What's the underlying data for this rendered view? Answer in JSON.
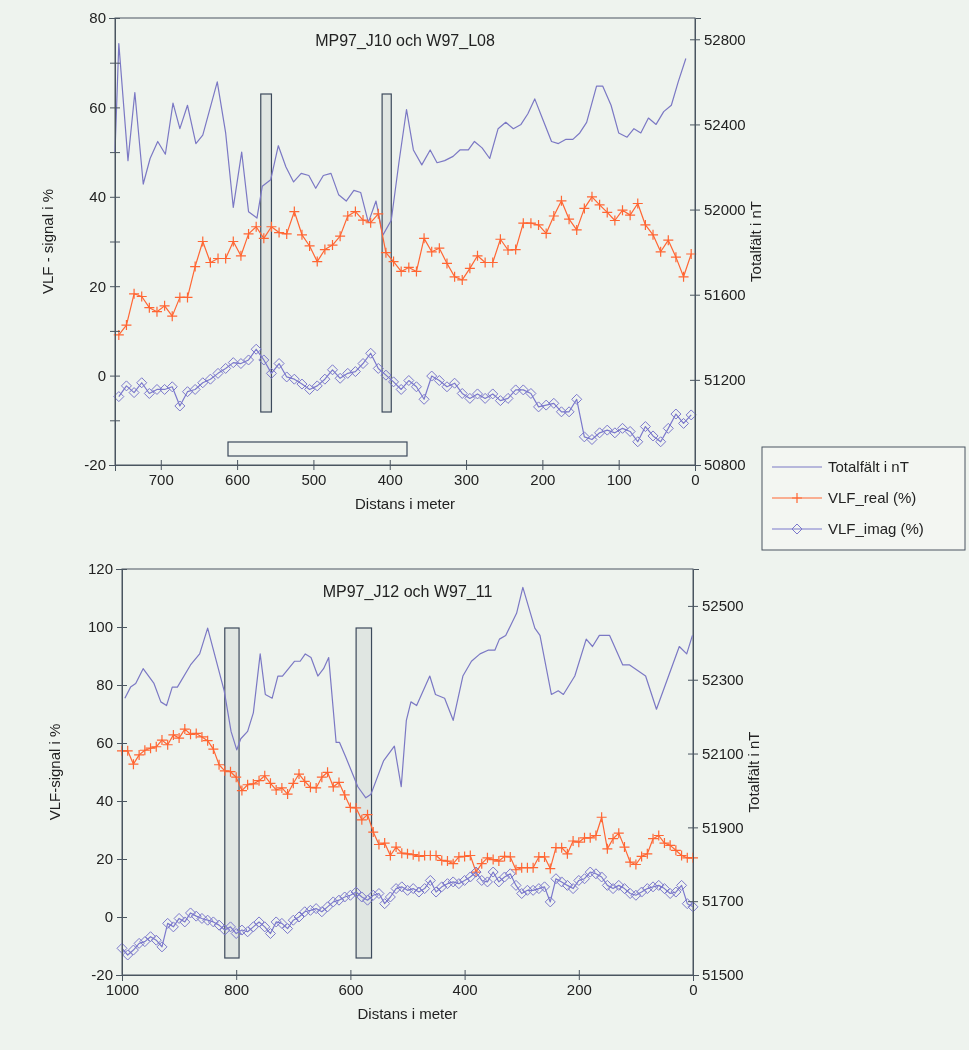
{
  "chart_data": [
    {
      "type": "line",
      "title": "MP97_J10 och W97_L08",
      "xlabel": "Distans i meter",
      "ylabel": "VLF - signal i %",
      "y2label": "Totalfält i nT",
      "legend": "right",
      "x": [
        755,
        745,
        735,
        725,
        715,
        705,
        695,
        685,
        675,
        665,
        655,
        645,
        635,
        625,
        615,
        605,
        595,
        585,
        575,
        565,
        555,
        545,
        535,
        525,
        515,
        505,
        495,
        485,
        475,
        465,
        455,
        445,
        435,
        425,
        415,
        405,
        395,
        385,
        375,
        365,
        355,
        345,
        335,
        325,
        315,
        305,
        295,
        285,
        275,
        265,
        255,
        245,
        235,
        225,
        215,
        205,
        195,
        185,
        175,
        165,
        155,
        145,
        135,
        125,
        115,
        105,
        95,
        85,
        75,
        65,
        55,
        45,
        35,
        25,
        15,
        5
      ],
      "xlim": [
        760,
        0
      ],
      "xticks": [
        700,
        600,
        500,
        400,
        300,
        200,
        100,
        0
      ],
      "ylim": [
        -20,
        80
      ],
      "yticks": [
        -20,
        {
          "value": -10,
          "label": null
        },
        0,
        {
          "value": 10,
          "label": null
        },
        20,
        {
          "value": 30,
          "label": null
        },
        40,
        {
          "value": 50,
          "label": null
        },
        60,
        {
          "value": 70,
          "label": null
        },
        80
      ],
      "y2lim": [
        50800,
        52900
      ],
      "y2ticks": [
        50800,
        51200,
        51600,
        52000,
        52400,
        52800
      ],
      "series": [
        {
          "name": "Totalfält i nT",
          "color": "#7b78c4",
          "axis": "y2",
          "marker": "none",
          "x": [
            760,
            755,
            743,
            734,
            723,
            714,
            704,
            694,
            684,
            675,
            665,
            654,
            645,
            626,
            615,
            605,
            594,
            585,
            574,
            567,
            556,
            546,
            536,
            526,
            516,
            506,
            497,
            487,
            477,
            467,
            457,
            447,
            438,
            428,
            418,
            409,
            398,
            388,
            378,
            369,
            358,
            347,
            338,
            328,
            317,
            308,
            297,
            289,
            279,
            269,
            258,
            248,
            238,
            228,
            219,
            210,
            199,
            188,
            179,
            169,
            160,
            151,
            142,
            129,
            121,
            110,
            100,
            89,
            80,
            71,
            61,
            51,
            41,
            31,
            22,
            12
          ],
          "values": [
            52270,
            52780,
            52230,
            52550,
            52120,
            52240,
            52320,
            52260,
            52500,
            52380,
            52490,
            52310,
            52350,
            52600,
            52360,
            52010,
            52270,
            51990,
            51960,
            52110,
            52140,
            52300,
            52200,
            52130,
            52170,
            52160,
            52100,
            52160,
            52170,
            52070,
            52040,
            52090,
            52080,
            51940,
            52040,
            51880,
            51950,
            52220,
            52470,
            52280,
            52210,
            52280,
            52220,
            52230,
            52250,
            52280,
            52280,
            52320,
            52290,
            52240,
            52380,
            52410,
            52380,
            52400,
            52450,
            52520,
            52420,
            52320,
            52310,
            52330,
            52330,
            52360,
            52410,
            52580,
            52580,
            52490,
            52360,
            52340,
            52380,
            52360,
            52430,
            52400,
            52460,
            52490,
            52600,
            52710
          ]
        },
        {
          "name": "VLF_real (%)",
          "color": "#ff6633",
          "marker": "cross",
          "values": [
            9.1,
            11.3,
            18.3,
            17.7,
            15.2,
            14.3,
            15.6,
            13.3,
            17.5,
            17.5,
            24.4,
            30.0,
            25.3,
            26.2,
            26.2,
            30.0,
            26.8,
            31.7,
            33.3,
            30.7,
            33.3,
            32.0,
            31.7,
            36.7,
            31.5,
            29.0,
            25.5,
            28.2,
            29.2,
            31.2,
            35.7,
            36.7,
            34.8,
            34.2,
            36.2,
            27.5,
            25.5,
            23.3,
            24.2,
            23.3,
            30.7,
            27.7,
            28.5,
            25.1,
            22.1,
            21.4,
            24.0,
            26.8,
            25.3,
            25.3,
            30.5,
            28.1,
            28.2,
            34.1,
            34.1,
            33.7,
            31.8,
            35.7,
            39.1,
            35.0,
            32.6,
            37.4,
            40.0,
            38.2,
            36.5,
            34.7,
            37.0,
            35.9,
            38.5,
            33.7,
            31.5,
            27.7,
            30.3,
            26.5,
            22.1,
            27.2
          ]
        },
        {
          "name": "VLF_imag (%)",
          "color": "#7b78cc",
          "marker": "diamond",
          "values": [
            -4.7,
            -2.3,
            -3.8,
            -1.6,
            -4.0,
            -3.1,
            -3.1,
            -2.5,
            -6.8,
            -3.6,
            -3.1,
            -1.6,
            -0.8,
            0.5,
            1.6,
            2.9,
            2.7,
            3.5,
            5.9,
            3.5,
            0.5,
            2.7,
            -0.3,
            -0.8,
            -1.9,
            -3.1,
            -2.3,
            -0.8,
            1.3,
            -0.6,
            0.5,
            0.9,
            2.7,
            5.0,
            1.6,
            0.1,
            -1.4,
            -3.1,
            -1.1,
            -2.5,
            -5.3,
            -0.1,
            -1.1,
            -2.5,
            -1.7,
            -4.0,
            -5.1,
            -4.1,
            -5.1,
            -4.1,
            -5.6,
            -5.1,
            -3.2,
            -3.2,
            -4.0,
            -7.0,
            -6.6,
            -6.2,
            -8.1,
            -8.1,
            -5.3,
            -13.7,
            -14.3,
            -12.8,
            -12.2,
            -12.8,
            -11.8,
            -12.5,
            -14.8,
            -11.4,
            -13.5,
            -14.8,
            -11.8,
            -8.6,
            -10.7,
            -8.8
          ]
        }
      ],
      "bands": [
        {
          "axis": "x",
          "from": 569,
          "to": 555,
          "color": "#3d4a5c"
        },
        {
          "axis": "x",
          "from": 410,
          "to": 398,
          "color": "#3d4a5c"
        }
      ]
    },
    {
      "type": "line",
      "title": "MP97_J12 och W97_11",
      "xlabel": "Distans i meter",
      "ylabel": "VLF-signal i %",
      "y2label": "Totalfält i nT",
      "x": [
        1000,
        990,
        980,
        970,
        960,
        950,
        940,
        930,
        920,
        910,
        900,
        890,
        880,
        870,
        860,
        850,
        840,
        830,
        820,
        810,
        800,
        790,
        780,
        770,
        760,
        750,
        740,
        730,
        720,
        710,
        700,
        690,
        680,
        670,
        660,
        650,
        640,
        630,
        620,
        610,
        600,
        590,
        580,
        570,
        560,
        550,
        540,
        530,
        520,
        510,
        500,
        490,
        480,
        470,
        460,
        450,
        440,
        430,
        420,
        410,
        400,
        390,
        380,
        370,
        360,
        350,
        340,
        330,
        320,
        310,
        300,
        290,
        280,
        270,
        260,
        250,
        240,
        230,
        220,
        210,
        200,
        190,
        180,
        170,
        160,
        150,
        140,
        130,
        120,
        110,
        100,
        90,
        80,
        70,
        60,
        50,
        40,
        30,
        20,
        10,
        0
      ],
      "xlim": [
        1000,
        0
      ],
      "xticks": [
        1000,
        800,
        600,
        400,
        200,
        0
      ],
      "ylim": [
        -20,
        120
      ],
      "yticks": [
        -20,
        0,
        20,
        40,
        60,
        80,
        100,
        120
      ],
      "y2lim": [
        51500,
        52600
      ],
      "y2ticks": [
        51500,
        51700,
        51900,
        52100,
        52300,
        52500
      ],
      "series": [
        {
          "color": "#7b78c4",
          "axis": "y2",
          "marker": "none",
          "x": [
            995,
            985,
            976,
            963,
            944,
            932,
            922,
            912,
            903,
            880,
            864,
            850,
            821,
            809,
            799,
            792,
            780,
            770,
            758,
            749,
            737,
            727,
            719,
            698,
            688,
            679,
            669,
            657,
            647,
            638,
            625,
            619,
            608,
            587,
            573,
            564,
            542,
            523,
            511,
            502,
            494,
            484,
            461,
            451,
            435,
            420,
            403,
            388,
            373,
            359,
            347,
            339,
            328,
            309,
            298,
            277,
            268,
            248,
            236,
            227,
            207,
            187,
            176,
            164,
            146,
            123,
            111,
            83,
            64,
            24,
            11,
            1
          ],
          "values": [
            52250,
            52280,
            52290,
            52330,
            52290,
            52240,
            52230,
            52280,
            52280,
            52340,
            52370,
            52440,
            52270,
            52160,
            52110,
            52140,
            52160,
            52210,
            52370,
            52260,
            52250,
            52310,
            52310,
            52350,
            52350,
            52370,
            52360,
            52310,
            52330,
            52360,
            52130,
            52130,
            52090,
            52010,
            51980,
            51990,
            52080,
            52120,
            52010,
            52190,
            52240,
            52230,
            52310,
            52260,
            52250,
            52190,
            52310,
            52350,
            52370,
            52380,
            52380,
            52410,
            52420,
            52480,
            52550,
            52440,
            52420,
            52260,
            52270,
            52260,
            52310,
            52410,
            52390,
            52420,
            52420,
            52340,
            52340,
            52310,
            52220,
            52390,
            52370,
            52420
          ]
        },
        {
          "color": "#ff6633",
          "marker": "cross",
          "values": [
            57.3,
            57.3,
            52.7,
            55.9,
            57.5,
            58.2,
            58.7,
            61.0,
            59.4,
            62.8,
            61.7,
            64.8,
            63.0,
            63.3,
            62.1,
            60.8,
            57.9,
            52.5,
            50.4,
            50.1,
            48.2,
            43.6,
            45.6,
            45.9,
            47.0,
            48.7,
            46.1,
            43.8,
            44.5,
            42.4,
            46.1,
            49.3,
            46.8,
            44.7,
            44.5,
            48.2,
            49.9,
            44.9,
            46.4,
            42.1,
            37.8,
            37.6,
            33.5,
            35.3,
            29.3,
            25.0,
            25.5,
            21.2,
            24.1,
            22.0,
            21.8,
            21.5,
            20.9,
            21.2,
            21.2,
            21.2,
            19.5,
            19.3,
            18.4,
            20.7,
            20.9,
            21.2,
            15.5,
            18.4,
            20.4,
            19.8,
            19.3,
            20.9,
            20.7,
            16.3,
            17.0,
            17.0,
            17.0,
            20.7,
            20.7,
            16.7,
            23.9,
            23.9,
            21.8,
            26.2,
            25.8,
            27.3,
            27.3,
            28.1,
            34.4,
            23.5,
            27.0,
            28.9,
            24.1,
            18.9,
            18.1,
            20.9,
            21.8,
            27.0,
            28.1,
            25.5,
            24.7,
            23.0,
            21.2,
            20.4,
            20.4
          ]
        },
        {
          "color": "#7b78cc",
          "marker": "diamond",
          "values": [
            -10.8,
            -13.1,
            -11.4,
            -9.1,
            -8.5,
            -6.8,
            -8.0,
            -10.3,
            -2.2,
            -3.4,
            -0.5,
            -1.7,
            1.4,
            0.3,
            -0.5,
            -1.1,
            -1.7,
            -2.8,
            -4.5,
            -3.4,
            -5.7,
            -4.5,
            -5.1,
            -3.4,
            -1.7,
            -3.4,
            -5.7,
            -1.7,
            -2.2,
            -4.0,
            -1.1,
            0.0,
            1.8,
            2.3,
            2.9,
            1.8,
            3.5,
            5.2,
            5.8,
            6.9,
            7.5,
            8.6,
            6.9,
            5.8,
            7.5,
            8.1,
            4.6,
            6.9,
            9.8,
            10.4,
            9.2,
            9.8,
            8.6,
            9.8,
            12.6,
            8.6,
            10.4,
            11.5,
            12.1,
            11.5,
            12.6,
            13.8,
            15.5,
            12.6,
            12.1,
            15.5,
            12.1,
            13.8,
            14.9,
            10.9,
            8.1,
            9.2,
            9.2,
            9.8,
            10.4,
            5.2,
            13.2,
            12.1,
            10.9,
            9.8,
            12.6,
            13.2,
            15.5,
            14.9,
            13.8,
            10.9,
            9.8,
            10.9,
            9.8,
            8.1,
            7.5,
            8.6,
            9.8,
            10.4,
            10.9,
            9.8,
            8.1,
            8.6,
            10.9,
            4.6,
            3.5
          ]
        }
      ],
      "bands": [
        {
          "axis": "x",
          "from": 820,
          "to": 795,
          "color": "#3d4a5c"
        },
        {
          "axis": "x",
          "from": 590,
          "to": 563,
          "color": "#3d4a5c"
        }
      ]
    }
  ]
}
